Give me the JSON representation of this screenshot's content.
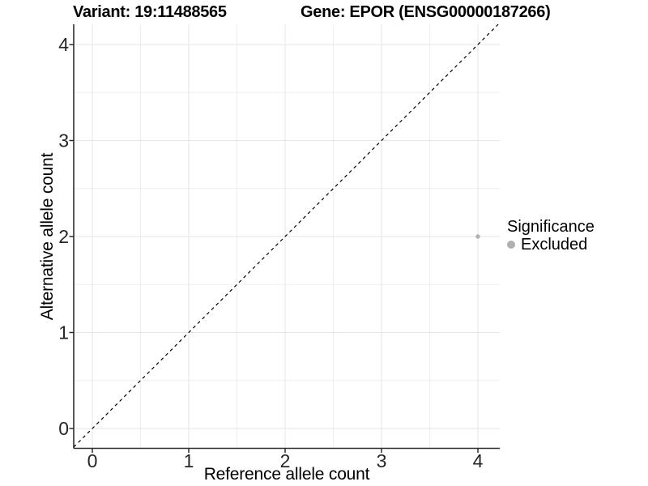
{
  "chart_data": {
    "type": "scatter",
    "title_left": "Variant: 19:11488565",
    "title_right": "Gene: EPOR (ENSG00000187266)",
    "xlabel": "Reference allele count",
    "ylabel": "Alternative allele count",
    "x_ticks": [
      0,
      1,
      2,
      3,
      4
    ],
    "y_ticks": [
      0,
      1,
      2,
      3,
      4
    ],
    "xlim": [
      -0.19,
      4.23
    ],
    "ylim": [
      -0.21,
      4.21
    ],
    "grid": {
      "show": true,
      "major_every": 1,
      "minor_every": 0.5,
      "major_color": "#e5e5e5",
      "minor_color": "#efefef"
    },
    "axis_color": "#2e2e2e",
    "tick_label_color": "#262626",
    "reference_line": {
      "kind": "identity",
      "equation": "y = x",
      "style": "dashed",
      "color": "#000000"
    },
    "series": [
      {
        "name": "Excluded",
        "color": "#b0b0b0",
        "points": [
          {
            "x": 4,
            "y": 2
          }
        ]
      }
    ],
    "legend": {
      "title": "Significance",
      "position": "right",
      "entries": [
        "Excluded"
      ],
      "key_color": "#b0b0b0"
    }
  }
}
